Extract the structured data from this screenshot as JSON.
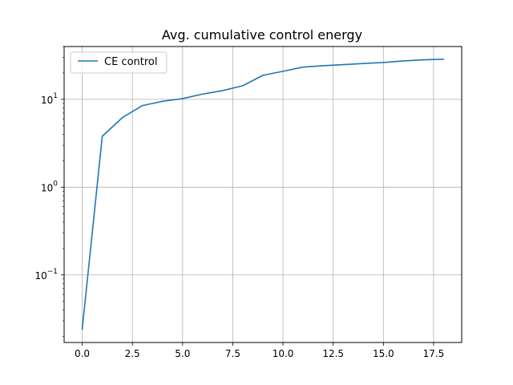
{
  "chart_data": {
    "type": "line",
    "title": "Avg. cumulative control energy",
    "xlabel": "",
    "ylabel": "",
    "yscale": "log",
    "xlim": [
      -0.9,
      18.9
    ],
    "ylim": [
      0.017,
      40
    ],
    "grid": true,
    "legend_position": "top-left",
    "x_ticks": [
      0,
      2.5,
      5,
      7.5,
      10,
      12.5,
      15,
      17.5
    ],
    "x_tick_labels": [
      "0.0",
      "2.5",
      "5.0",
      "7.5",
      "10.0",
      "12.5",
      "15.0",
      "17.5"
    ],
    "y_ticks": [
      {
        "value": 0.1,
        "base": "10",
        "exp": "−1"
      },
      {
        "value": 1,
        "base": "10",
        "exp": "0"
      },
      {
        "value": 10,
        "base": "10",
        "exp": "1"
      }
    ],
    "series": [
      {
        "name": "CE control",
        "color": "#1f77b4",
        "x": [
          0,
          1,
          2,
          3,
          4,
          5,
          6,
          7,
          8,
          9,
          10,
          11,
          12,
          13,
          14,
          15,
          16,
          17,
          18
        ],
        "y": [
          0.024,
          3.8,
          6.2,
          8.5,
          9.5,
          10.2,
          11.5,
          12.6,
          14.3,
          18.8,
          20.9,
          23.3,
          24.2,
          24.9,
          25.6,
          26.3,
          27.4,
          28.2,
          28.7
        ]
      }
    ]
  }
}
